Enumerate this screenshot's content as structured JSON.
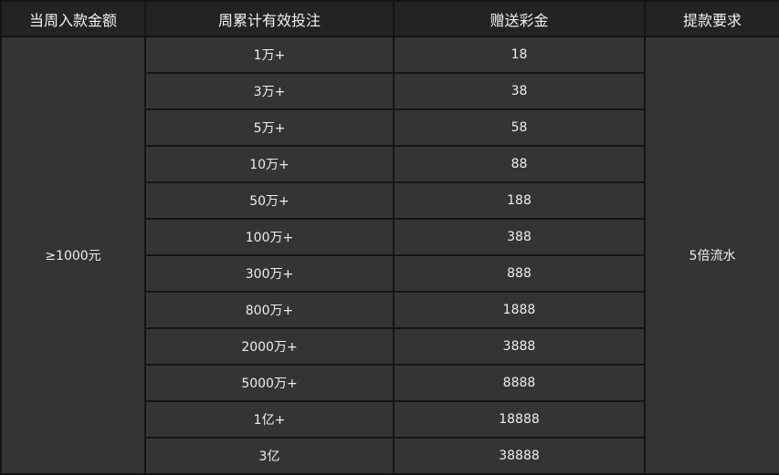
{
  "headers": [
    "当周入款金额",
    "周累计有效投注",
    "赠送彩金",
    "提款要求"
  ],
  "deposit": "≥1000元",
  "requirement": "5倍流水",
  "rows": [
    {
      "bet": "1万+",
      "bonus": "18"
    },
    {
      "bet": "3万+",
      "bonus": "38"
    },
    {
      "bet": "5万+",
      "bonus": "58"
    },
    {
      "bet": "10万+",
      "bonus": "88"
    },
    {
      "bet": "50万+",
      "bonus": "188"
    },
    {
      "bet": "100万+",
      "bonus": "388"
    },
    {
      "bet": "300万+",
      "bonus": "888"
    },
    {
      "bet": "800万+",
      "bonus": "1888"
    },
    {
      "bet": "2000万+",
      "bonus": "3888"
    },
    {
      "bet": "5000万+",
      "bonus": "8888"
    },
    {
      "bet": "1亿+",
      "bonus": "18888"
    },
    {
      "bet": "3亿",
      "bonus": "38888"
    }
  ]
}
